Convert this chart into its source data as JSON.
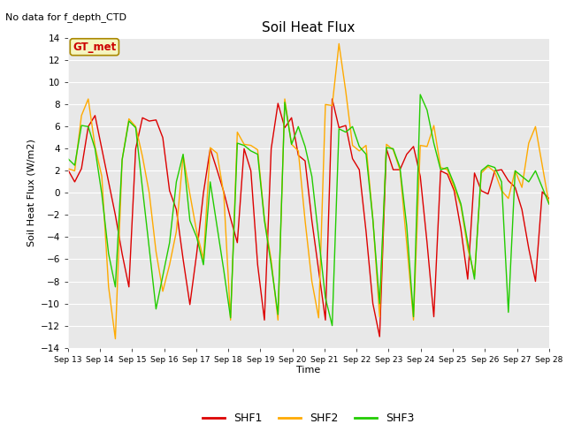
{
  "title": "Soil Heat Flux",
  "ylabel": "Soil Heat Flux (W/m2)",
  "xlabel": "Time",
  "ylim": [
    -14,
    14
  ],
  "yticks": [
    -14,
    -12,
    -10,
    -8,
    -6,
    -4,
    -2,
    0,
    2,
    4,
    6,
    8,
    10,
    12,
    14
  ],
  "no_data_text": "No data for f_depth_CTD",
  "gt_met_label": "GT_met",
  "bg_color": "#e8e8e8",
  "fig_color": "#ffffff",
  "line_colors": {
    "SHF1": "#dd0000",
    "SHF2": "#ffaa00",
    "SHF3": "#22cc00"
  },
  "line_width": 1.0,
  "x_labels": [
    "Sep 13",
    "Sep 14",
    "Sep 15",
    "Sep 16",
    "Sep 17",
    "Sep 18",
    "Sep 19",
    "Sep 20",
    "Sep 21",
    "Sep 22",
    "Sep 23",
    "Sep 24",
    "Sep 25",
    "Sep 26",
    "Sep 27",
    "Sep 28"
  ],
  "SHF1": [
    2.1,
    1.0,
    2.2,
    6.0,
    7.0,
    4.0,
    1.0,
    -2.0,
    -5.5,
    -8.5,
    4.0,
    6.8,
    6.5,
    6.6,
    5.0,
    0.2,
    -1.5,
    -6.0,
    -10.1,
    -5.5,
    0.0,
    4.0,
    2.1,
    0.1,
    -2.3,
    -4.5,
    4.0,
    2.0,
    -6.5,
    -11.5,
    4.0,
    8.1,
    5.9,
    6.8,
    3.4,
    2.9,
    -2.5,
    -7.0,
    -11.5,
    8.5,
    5.9,
    6.1,
    3.1,
    2.1,
    -3.5,
    -10.0,
    -13.0,
    4.0,
    2.1,
    2.1,
    3.5,
    4.2,
    1.5,
    -4.5,
    -11.2,
    2.0,
    1.7,
    0.2,
    -3.3,
    -7.8,
    1.8,
    0.2,
    -0.1,
    2.0,
    2.1,
    1.1,
    0.5,
    -1.5,
    -5.0,
    -8.0,
    0.1,
    -0.5,
    0.0
  ],
  "SHF2": [
    2.2,
    2.0,
    7.0,
    8.5,
    4.2,
    1.5,
    -8.5,
    -13.2,
    3.0,
    6.7,
    6.0,
    3.3,
    0.0,
    -5.3,
    -8.9,
    -6.5,
    -3.5,
    3.4,
    -0.1,
    -3.5,
    -6.0,
    4.1,
    3.6,
    -0.1,
    -11.5,
    5.5,
    4.4,
    4.3,
    3.9,
    -2.3,
    -6.1,
    -11.5,
    8.5,
    4.4,
    3.8,
    -2.5,
    -8.0,
    -11.3,
    8.0,
    7.9,
    13.5,
    9.2,
    4.3,
    3.8,
    4.3,
    -2.3,
    -11.2,
    4.4,
    3.9,
    2.1,
    -4.6,
    -11.5,
    4.3,
    4.2,
    6.1,
    2.3,
    2.1,
    0.5,
    -1.2,
    -5.0,
    -7.5,
    1.8,
    2.4,
    1.9,
    0.2,
    -0.5,
    2.0,
    0.5,
    4.5,
    6.0,
    2.5,
    -1.0
  ],
  "SHF3": [
    3.1,
    2.5,
    6.1,
    6.0,
    4.0,
    -0.1,
    -5.5,
    -8.5,
    3.0,
    6.5,
    5.9,
    0.4,
    -5.0,
    -10.5,
    -7.5,
    -4.5,
    1.0,
    3.5,
    -2.5,
    -4.0,
    -6.5,
    1.0,
    -3.0,
    -7.0,
    -11.3,
    4.5,
    4.3,
    3.8,
    3.5,
    -2.5,
    -6.5,
    -11.0,
    8.2,
    4.4,
    6.0,
    4.2,
    1.5,
    -4.0,
    -9.5,
    -12.0,
    5.8,
    5.5,
    6.0,
    4.2,
    3.5,
    -2.4,
    -10.0,
    4.1,
    4.0,
    2.3,
    -3.0,
    -11.2,
    8.9,
    7.5,
    4.5,
    2.1,
    2.3,
    0.8,
    -1.0,
    -4.5,
    -7.8,
    2.0,
    2.5,
    2.3,
    1.0,
    -10.8,
    2.0,
    1.5,
    1.0,
    2.0,
    0.5,
    -1.0
  ]
}
